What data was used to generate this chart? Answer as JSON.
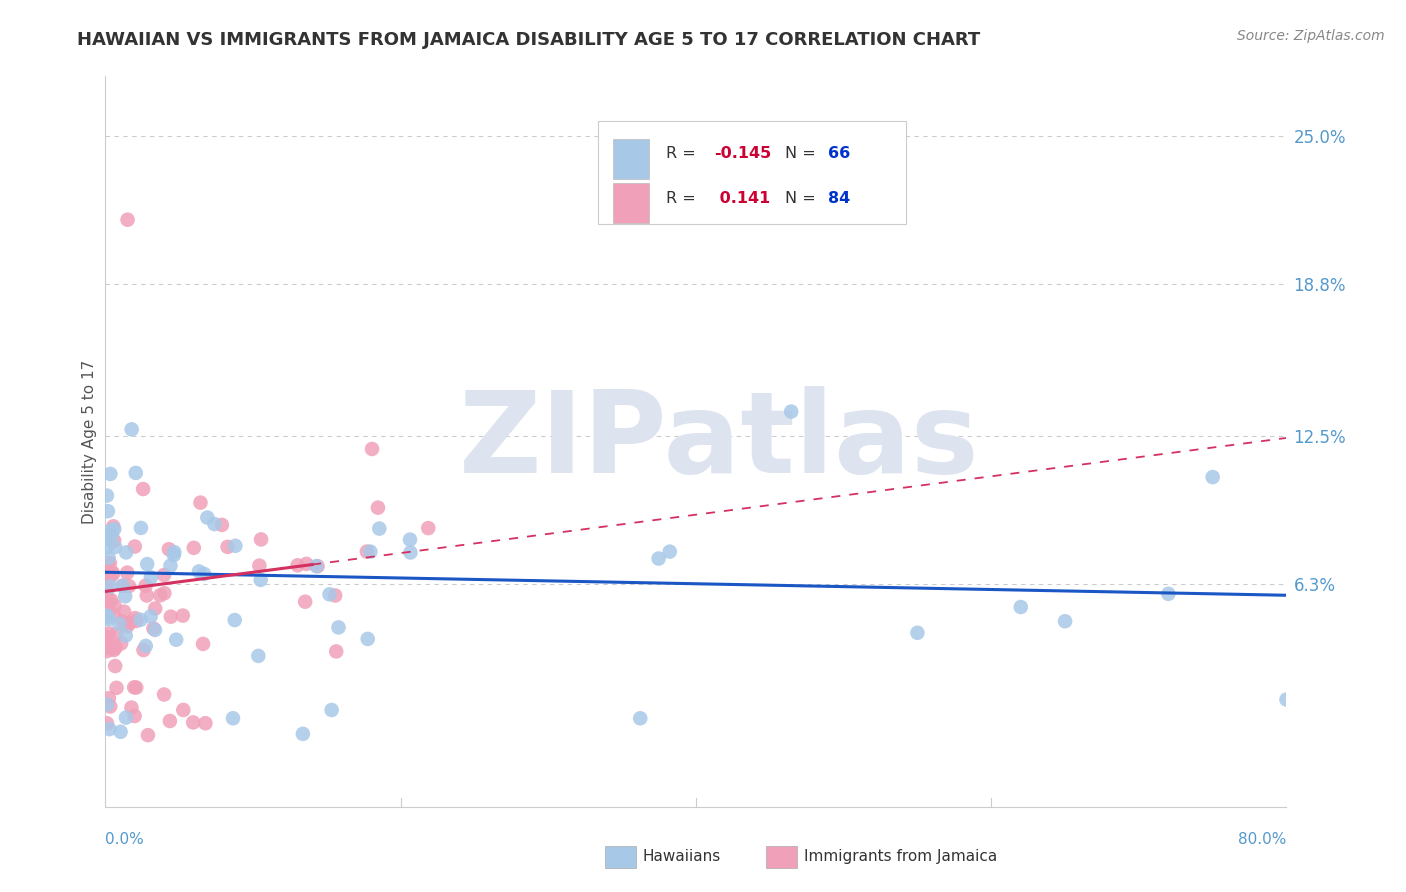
{
  "title": "HAWAIIAN VS IMMIGRANTS FROM JAMAICA DISABILITY AGE 5 TO 17 CORRELATION CHART",
  "source": "Source: ZipAtlas.com",
  "ylabel": "Disability Age 5 to 17",
  "ytick_positions": [
    0.0,
    0.063,
    0.125,
    0.188,
    0.25
  ],
  "ytick_labels": [
    "",
    "6.3%",
    "12.5%",
    "18.8%",
    "25.0%"
  ],
  "xlim": [
    0.0,
    0.8
  ],
  "ylim": [
    -0.03,
    0.275
  ],
  "hawaiians_R": -0.145,
  "hawaiians_N": 66,
  "jamaica_R": 0.141,
  "jamaica_N": 84,
  "hawaiian_dot_color": "#a8c8e8",
  "jamaica_dot_color": "#f0a0b8",
  "hawaiian_line_color": "#1a56c4",
  "jamaica_solid_color": "#d43060",
  "jamaica_dash_color": "#d43060",
  "bg_color": "#ffffff",
  "grid_color": "#cccccc",
  "watermark_text": "ZIPatlas",
  "watermark_color": "#dde4ef",
  "title_color": "#333333",
  "source_color": "#888888",
  "right_tick_color": "#5599cc",
  "bottom_tick_color": "#5599cc",
  "legend_box_edge": "#cccccc",
  "legend_R_color": "#cc0033",
  "legend_N_color": "#0033cc"
}
